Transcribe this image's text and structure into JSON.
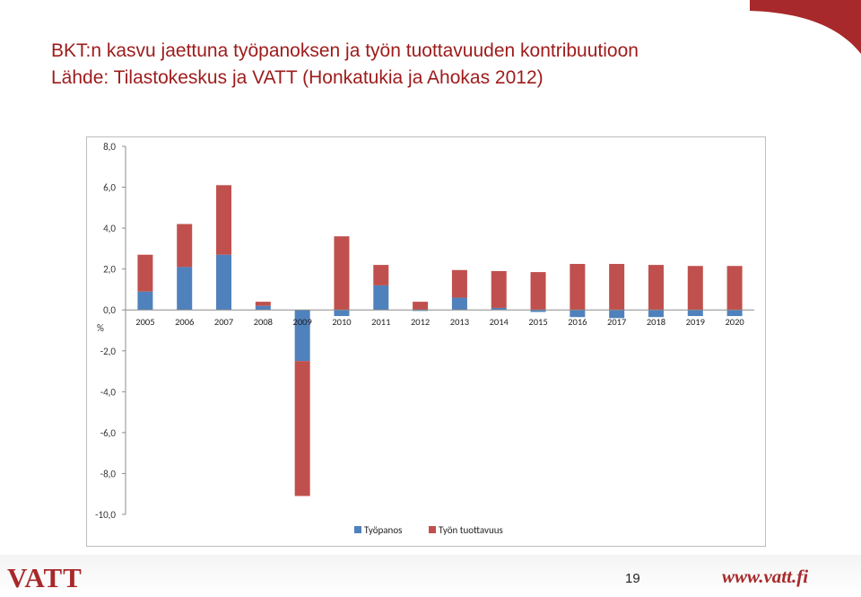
{
  "header": {
    "title_line1": "BKT:n kasvu jaettuna työpanoksen ja työn tuottavuuden kontribuutioon",
    "title_line2": "Lähde: Tilastokeskus ja VATT (Honkatukia ja Ahokas 2012)"
  },
  "colors": {
    "title": "#9e1b1b",
    "accent": "#a8292b",
    "series_tyopanos": "#4f81bd",
    "series_tuottavuus": "#c0504d"
  },
  "chart_data": {
    "type": "bar",
    "stacked": true,
    "categories": [
      "2005",
      "2006",
      "2007",
      "2008",
      "2009",
      "2010",
      "2011",
      "2012",
      "2013",
      "2014",
      "2015",
      "2016",
      "2017",
      "2018",
      "2019",
      "2020"
    ],
    "series": [
      {
        "name": "Työpanos",
        "color": "#4f81bd",
        "values": [
          0.9,
          2.1,
          2.7,
          0.2,
          -2.5,
          -0.3,
          1.2,
          -0.05,
          0.6,
          0.1,
          -0.1,
          -0.35,
          -0.4,
          -0.35,
          -0.3,
          -0.3
        ]
      },
      {
        "name": "Työn tuottavuus",
        "color": "#c0504d",
        "values": [
          1.8,
          2.1,
          3.4,
          0.2,
          -6.6,
          3.6,
          1.0,
          0.4,
          1.35,
          1.8,
          1.85,
          2.25,
          2.25,
          2.2,
          2.15,
          2.15
        ]
      }
    ],
    "y_tick_labels": [
      "8,0",
      "6,0",
      "4,0",
      "2,0",
      "0,0",
      "-2,0",
      "-4,0",
      "-6,0",
      "-8,0",
      "-10,0"
    ],
    "y_ticks": [
      8,
      6,
      4,
      2,
      0,
      -2,
      -4,
      -6,
      -8,
      -10
    ],
    "ylim": [
      -10,
      8
    ],
    "ylabel": "%",
    "xlabel": "",
    "title": "",
    "grid": false,
    "legend_position": "bottom"
  },
  "footer": {
    "logo_text": "VATT",
    "page_number": "19",
    "url": "www.vatt.fi"
  }
}
